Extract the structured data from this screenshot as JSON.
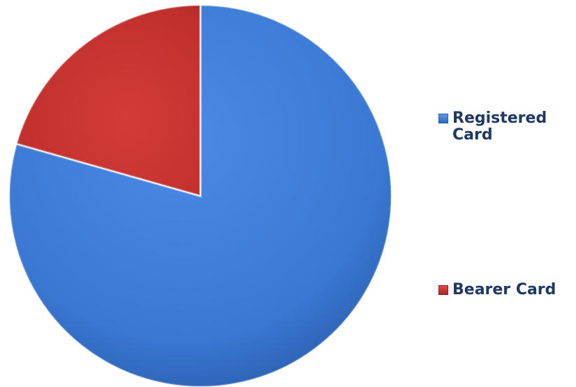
{
  "chart_data": {
    "type": "pie",
    "title": "",
    "slices": [
      {
        "label": "Registered Card",
        "value": 79.4,
        "color": "#3b7ad6"
      },
      {
        "label": "Bearer Card",
        "value": 20.6,
        "color": "#c9302d"
      }
    ],
    "start_angle_deg": 0,
    "direction": "clockwise",
    "legend": {
      "placement": "right",
      "items": [
        {
          "label": "Registered Card",
          "color": "#3b7ad6"
        },
        {
          "label": "Bearer Card",
          "color": "#c9302d"
        }
      ]
    }
  }
}
